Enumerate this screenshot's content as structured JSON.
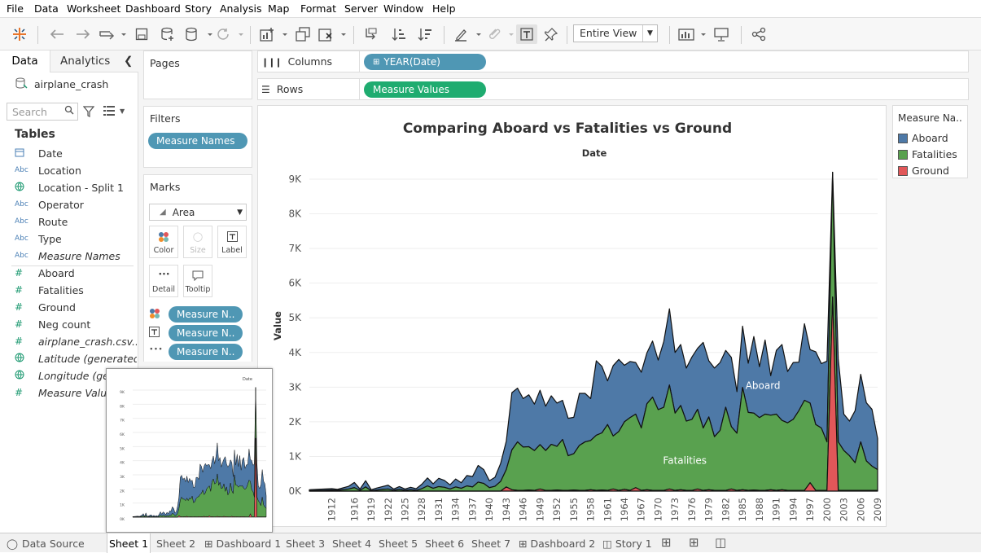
{
  "menu": [
    "File",
    "Data",
    "Worksheet",
    "Dashboard",
    "Story",
    "Analysis",
    "Map",
    "Format",
    "Server",
    "Window",
    "Help"
  ],
  "toolbar": {
    "view_select": "Entire View"
  },
  "data_pane": {
    "tabs": [
      "Data",
      "Analytics"
    ],
    "datasource": "airplane_crash",
    "search_placeholder": "Search",
    "tables_heading": "Tables",
    "fields": [
      {
        "icon": "calendar-icon",
        "type": "date",
        "name": "Date"
      },
      {
        "icon": "abc-icon",
        "type": "dim",
        "name": "Location"
      },
      {
        "icon": "globe-icon",
        "type": "geo",
        "name": "Location - Split 1"
      },
      {
        "icon": "abc-icon",
        "type": "dim",
        "name": "Operator"
      },
      {
        "icon": "abc-icon",
        "type": "dim",
        "name": "Route"
      },
      {
        "icon": "abc-icon",
        "type": "dim",
        "name": "Type"
      },
      {
        "icon": "abc-icon",
        "type": "dim",
        "name": "Measure Names",
        "italic": true
      },
      {
        "icon": "hash-icon",
        "type": "meas",
        "name": "Aboard"
      },
      {
        "icon": "hash-icon",
        "type": "meas",
        "name": "Fatalities"
      },
      {
        "icon": "hash-icon",
        "type": "meas",
        "name": "Ground"
      },
      {
        "icon": "hash-icon",
        "type": "meas",
        "name": "Neg count"
      },
      {
        "icon": "hash-icon",
        "type": "meas",
        "name": "airplane_crash.csv...",
        "italic": true
      },
      {
        "icon": "globe-icon",
        "type": "geo",
        "name": "Latitude (generated)",
        "italic": true
      },
      {
        "icon": "globe-icon",
        "type": "geo",
        "name": "Longitude (gen",
        "italic": true
      },
      {
        "icon": "hash-icon",
        "type": "meas",
        "name": "Measure Value",
        "italic": true
      }
    ]
  },
  "cards": {
    "pages": "Pages",
    "filters": "Filters",
    "filter_pill": "Measure Names",
    "marks": "Marks",
    "mark_type": "Area",
    "mark_buttons": [
      "Color",
      "Size",
      "Label",
      "Detail",
      "Tooltip"
    ],
    "mark_pills": [
      "Measure N..",
      "Measure N..",
      "Measure N.."
    ]
  },
  "shelves": {
    "columns_label": "Columns",
    "columns_pill": "YEAR(Date)",
    "rows_label": "Rows",
    "rows_pill": "Measure Values"
  },
  "legend": {
    "title": "Measure Na..",
    "items": [
      {
        "name": "Aboard",
        "color": "#4e79a7"
      },
      {
        "name": "Fatalities",
        "color": "#59a14f"
      },
      {
        "name": "Ground",
        "color": "#e15759"
      }
    ]
  },
  "tabs": [
    "Data Source",
    "Sheet 1",
    "Sheet 2",
    "Dashboard 1",
    "Sheet 3",
    "Sheet 4",
    "Sheet 5",
    "Sheet 6",
    "Sheet 7",
    "Dashboard 2",
    "Story 1"
  ],
  "active_tab": "Sheet 1",
  "chart_data": {
    "type": "area",
    "title": "Comparing Aboard vs Fatalities vs Ground",
    "xlabel": "Date",
    "ylabel": "Value",
    "y_ticks": [
      "0K",
      "1K",
      "2K",
      "3K",
      "4K",
      "5K",
      "6K",
      "7K",
      "8K",
      "9K"
    ],
    "x_ticks": [
      "1912",
      "1916",
      "1919",
      "1922",
      "1925",
      "1928",
      "1931",
      "1934",
      "1937",
      "1940",
      "1943",
      "1946",
      "1949",
      "1952",
      "1955",
      "1958",
      "1961",
      "1964",
      "1967",
      "1970",
      "1973",
      "1976",
      "1979",
      "1982",
      "1985",
      "1988",
      "1991",
      "1994",
      "1997",
      "2000",
      "2003",
      "2006",
      "2009"
    ],
    "ylim": [
      0,
      9000
    ],
    "stacked": true,
    "annotations": [
      "Aboard",
      "Fatalities"
    ],
    "x": [
      1908,
      1912,
      1913,
      1915,
      1916,
      1917,
      1918,
      1919,
      1920,
      1921,
      1922,
      1923,
      1924,
      1925,
      1926,
      1927,
      1928,
      1929,
      1930,
      1931,
      1932,
      1933,
      1934,
      1935,
      1936,
      1937,
      1938,
      1939,
      1940,
      1941,
      1942,
      1943,
      1944,
      1945,
      1946,
      1947,
      1948,
      1949,
      1950,
      1951,
      1952,
      1953,
      1954,
      1955,
      1956,
      1957,
      1958,
      1959,
      1960,
      1961,
      1962,
      1963,
      1964,
      1965,
      1966,
      1967,
      1968,
      1969,
      1970,
      1971,
      1972,
      1973,
      1974,
      1975,
      1976,
      1977,
      1978,
      1979,
      1980,
      1981,
      1982,
      1983,
      1984,
      1985,
      1986,
      1987,
      1988,
      1989,
      1990,
      1991,
      1992,
      1993,
      1994,
      1995,
      1996,
      1997,
      1998,
      1999,
      2000,
      2001,
      2002,
      2003,
      2004,
      2005,
      2006,
      2007,
      2008,
      2009
    ],
    "series": [
      {
        "name": "Ground",
        "values": [
          0,
          0,
          0,
          0,
          0,
          0,
          0,
          0,
          0,
          0,
          0,
          0,
          0,
          0,
          0,
          0,
          0,
          0,
          0,
          0,
          0,
          0,
          0,
          0,
          0,
          0,
          0,
          0,
          0,
          0,
          0,
          120,
          40,
          20,
          20,
          30,
          20,
          60,
          20,
          20,
          30,
          20,
          20,
          30,
          20,
          20,
          40,
          20,
          30,
          20,
          60,
          20,
          50,
          20,
          100,
          20,
          40,
          20,
          20,
          20,
          60,
          20,
          40,
          20,
          20,
          60,
          20,
          40,
          20,
          20,
          20,
          60,
          20,
          40,
          20,
          30,
          20,
          20,
          40,
          20,
          40,
          20,
          20,
          20,
          20,
          240,
          20,
          20,
          20,
          5600,
          20,
          20,
          20,
          20,
          20,
          20,
          20,
          20
        ]
      },
      {
        "name": "Fatalities",
        "values": [
          10,
          30,
          20,
          60,
          100,
          20,
          120,
          10,
          30,
          50,
          60,
          20,
          50,
          20,
          40,
          20,
          70,
          150,
          80,
          130,
          110,
          60,
          120,
          80,
          150,
          120,
          260,
          220,
          100,
          140,
          280,
          500,
          1150,
          1400,
          1250,
          1250,
          1150,
          1280,
          1150,
          1330,
          1260,
          1470,
          1000,
          1050,
          1300,
          1400,
          1420,
          1590,
          1650,
          1900,
          1530,
          1700,
          1950,
          2100,
          2120,
          1800,
          2480,
          2690,
          2330,
          2400,
          3000,
          2230,
          2430,
          2000,
          2050,
          2300,
          1800,
          2100,
          1550,
          1730,
          2400,
          1800,
          1650,
          2950,
          2250,
          2220,
          2100,
          2200,
          2150,
          2200,
          2000,
          1950,
          2050,
          2300,
          2600,
          2300,
          1900,
          1800,
          1400,
          3600,
          1400,
          1150,
          1000,
          800,
          1400,
          850,
          700,
          600
        ]
      },
      {
        "name": "Aboard",
        "values": [
          30,
          40,
          30,
          80,
          150,
          40,
          180,
          30,
          60,
          80,
          110,
          40,
          80,
          40,
          70,
          50,
          130,
          230,
          130,
          240,
          200,
          120,
          230,
          160,
          300,
          300,
          480,
          400,
          200,
          260,
          520,
          820,
          1650,
          1550,
          1400,
          1500,
          1340,
          1570,
          1280,
          1400,
          1250,
          1130,
          1080,
          1050,
          1500,
          1400,
          1210,
          2150,
          1920,
          1260,
          2030,
          2080,
          1630,
          1620,
          1490,
          1610,
          1470,
          1620,
          1430,
          1900,
          2200,
          1750,
          1760,
          1530,
          1800,
          1760,
          2470,
          1620,
          1980,
          1960,
          1640,
          2000,
          1200,
          1770,
          1420,
          2210,
          1470,
          2140,
          1140,
          1840,
          2190,
          1480,
          1640,
          1400,
          2210,
          1540,
          2100,
          1860,
          2330,
          0,
          2400,
          1050,
          1000,
          1500,
          1950,
          1680,
          1640,
          900
        ]
      }
    ]
  }
}
